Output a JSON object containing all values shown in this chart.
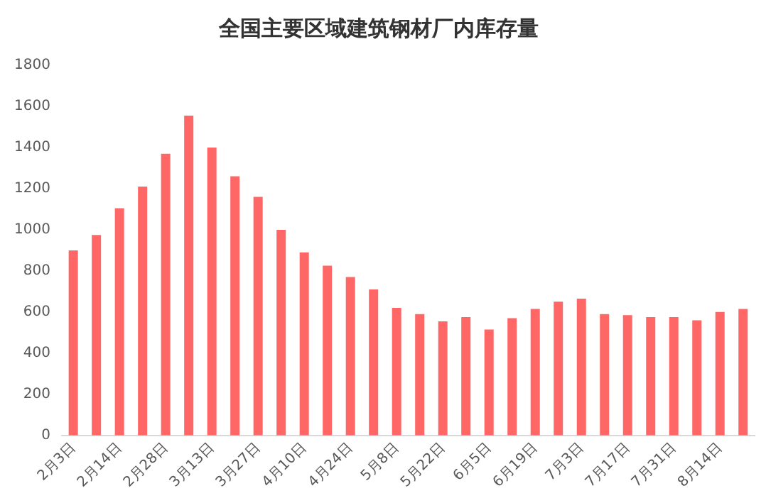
{
  "chart_data": {
    "type": "bar",
    "title": "全国主要区域建筑钢材厂内库存量",
    "categories": [
      "2月3日",
      null,
      "2月14日",
      null,
      "2月28日",
      null,
      "3月13日",
      null,
      "3月27日",
      null,
      "4月10日",
      null,
      "4月24日",
      null,
      "5月8日",
      null,
      "5月22日",
      null,
      "6月5日",
      null,
      "6月19日",
      null,
      "7月3日",
      null,
      "7月17日",
      null,
      "7月31日",
      null,
      "8月14日",
      null
    ],
    "values": [
      900,
      975,
      1105,
      1210,
      1370,
      1555,
      1400,
      1260,
      1160,
      1000,
      890,
      825,
      770,
      710,
      620,
      590,
      555,
      575,
      515,
      570,
      615,
      650,
      665,
      590,
      585,
      575,
      575,
      560,
      600,
      615
    ],
    "color": "#ff6666",
    "ylim": [
      0,
      1800
    ],
    "yticks": [
      0,
      200,
      400,
      600,
      800,
      1000,
      1200,
      1400,
      1600,
      1800
    ],
    "grid": false,
    "legend": false
  }
}
